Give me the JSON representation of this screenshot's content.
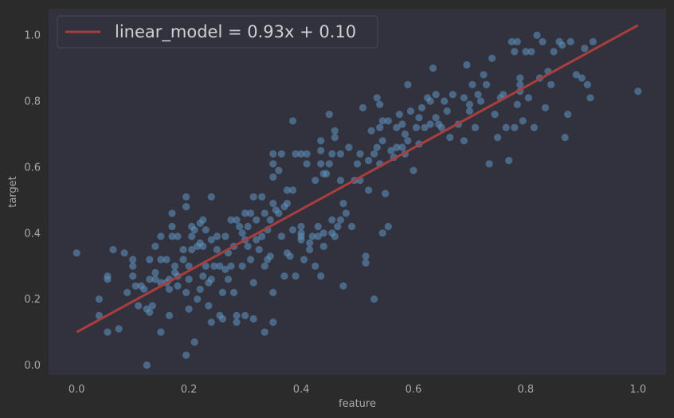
{
  "chart_data": {
    "type": "scatter",
    "title": "",
    "xlabel": "feature",
    "ylabel": "target",
    "xlim": [
      -0.05,
      1.05
    ],
    "ylim": [
      -0.03,
      1.08
    ],
    "xticks": [
      0.0,
      0.2,
      0.4,
      0.6,
      0.8,
      1.0
    ],
    "yticks": [
      0.0,
      0.2,
      0.4,
      0.6,
      0.8,
      1.0
    ],
    "xtick_labels": [
      "0.0",
      "0.2",
      "0.4",
      "0.6",
      "0.8",
      "1.0"
    ],
    "ytick_labels": [
      "0.0",
      "0.2",
      "0.4",
      "0.6",
      "0.8",
      "1.0"
    ],
    "grid": false,
    "legend_position": "top-left",
    "colors": {
      "background": "#2b2b2b",
      "plot_background": "#32323e",
      "points": "#5b8db8",
      "line": "#a83e3e",
      "text": "#a8a8a8",
      "legend_text": "#d0d0d0"
    },
    "line": {
      "name": "linear_model = 0.93x + 0.10",
      "slope": 0.93,
      "intercept": 0.1,
      "x": [
        0.0,
        1.0
      ]
    },
    "points": [
      [
        0.0,
        0.34
      ],
      [
        0.04,
        0.2
      ],
      [
        0.04,
        0.15
      ],
      [
        0.055,
        0.27
      ],
      [
        0.055,
        0.26
      ],
      [
        0.055,
        0.1
      ],
      [
        0.065,
        0.35
      ],
      [
        0.075,
        0.11
      ],
      [
        0.085,
        0.34
      ],
      [
        0.09,
        0.22
      ],
      [
        0.1,
        0.32
      ],
      [
        0.1,
        0.3
      ],
      [
        0.1,
        0.27
      ],
      [
        0.105,
        0.24
      ],
      [
        0.11,
        0.18
      ],
      [
        0.115,
        0.24
      ],
      [
        0.12,
        0.23
      ],
      [
        0.125,
        0.17
      ],
      [
        0.125,
        0.0
      ],
      [
        0.13,
        0.32
      ],
      [
        0.13,
        0.16
      ],
      [
        0.13,
        0.26
      ],
      [
        0.135,
        0.18
      ],
      [
        0.14,
        0.36
      ],
      [
        0.14,
        0.28
      ],
      [
        0.14,
        0.26
      ],
      [
        0.15,
        0.32
      ],
      [
        0.15,
        0.25
      ],
      [
        0.15,
        0.39
      ],
      [
        0.15,
        0.1
      ],
      [
        0.16,
        0.32
      ],
      [
        0.16,
        0.25
      ],
      [
        0.165,
        0.26
      ],
      [
        0.165,
        0.23
      ],
      [
        0.165,
        0.15
      ],
      [
        0.17,
        0.39
      ],
      [
        0.17,
        0.42
      ],
      [
        0.17,
        0.46
      ],
      [
        0.175,
        0.28
      ],
      [
        0.175,
        0.3
      ],
      [
        0.18,
        0.39
      ],
      [
        0.18,
        0.27
      ],
      [
        0.18,
        0.24
      ],
      [
        0.19,
        0.32
      ],
      [
        0.19,
        0.35
      ],
      [
        0.195,
        0.51
      ],
      [
        0.195,
        0.48
      ],
      [
        0.195,
        0.22
      ],
      [
        0.195,
        0.03
      ],
      [
        0.2,
        0.26
      ],
      [
        0.2,
        0.3
      ],
      [
        0.2,
        0.17
      ],
      [
        0.205,
        0.42
      ],
      [
        0.205,
        0.35
      ],
      [
        0.205,
        0.39
      ],
      [
        0.21,
        0.41
      ],
      [
        0.21,
        0.07
      ],
      [
        0.215,
        0.36
      ],
      [
        0.215,
        0.2
      ],
      [
        0.22,
        0.43
      ],
      [
        0.22,
        0.37
      ],
      [
        0.22,
        0.23
      ],
      [
        0.225,
        0.27
      ],
      [
        0.225,
        0.36
      ],
      [
        0.225,
        0.44
      ],
      [
        0.23,
        0.3
      ],
      [
        0.23,
        0.41
      ],
      [
        0.235,
        0.25
      ],
      [
        0.235,
        0.18
      ],
      [
        0.24,
        0.51
      ],
      [
        0.24,
        0.38
      ],
      [
        0.24,
        0.26
      ],
      [
        0.24,
        0.13
      ],
      [
        0.245,
        0.3
      ],
      [
        0.25,
        0.35
      ],
      [
        0.25,
        0.39
      ],
      [
        0.255,
        0.3
      ],
      [
        0.255,
        0.15
      ],
      [
        0.26,
        0.14
      ],
      [
        0.26,
        0.22
      ],
      [
        0.265,
        0.39
      ],
      [
        0.265,
        0.29
      ],
      [
        0.27,
        0.34
      ],
      [
        0.27,
        0.26
      ],
      [
        0.275,
        0.44
      ],
      [
        0.275,
        0.3
      ],
      [
        0.28,
        0.36
      ],
      [
        0.28,
        0.22
      ],
      [
        0.285,
        0.44
      ],
      [
        0.285,
        0.15
      ],
      [
        0.285,
        0.13
      ],
      [
        0.29,
        0.42
      ],
      [
        0.295,
        0.3
      ],
      [
        0.295,
        0.4
      ],
      [
        0.3,
        0.46
      ],
      [
        0.3,
        0.38
      ],
      [
        0.3,
        0.15
      ],
      [
        0.305,
        0.36
      ],
      [
        0.305,
        0.42
      ],
      [
        0.31,
        0.46
      ],
      [
        0.31,
        0.32
      ],
      [
        0.315,
        0.51
      ],
      [
        0.315,
        0.25
      ],
      [
        0.315,
        0.14
      ],
      [
        0.32,
        0.44
      ],
      [
        0.32,
        0.38
      ],
      [
        0.325,
        0.35
      ],
      [
        0.33,
        0.51
      ],
      [
        0.33,
        0.39
      ],
      [
        0.335,
        0.46
      ],
      [
        0.335,
        0.3
      ],
      [
        0.335,
        0.1
      ],
      [
        0.34,
        0.41
      ],
      [
        0.34,
        0.32
      ],
      [
        0.345,
        0.33
      ],
      [
        0.345,
        0.44
      ],
      [
        0.35,
        0.57
      ],
      [
        0.35,
        0.61
      ],
      [
        0.35,
        0.64
      ],
      [
        0.35,
        0.49
      ],
      [
        0.35,
        0.22
      ],
      [
        0.35,
        0.13
      ],
      [
        0.355,
        0.47
      ],
      [
        0.36,
        0.59
      ],
      [
        0.36,
        0.46
      ],
      [
        0.365,
        0.64
      ],
      [
        0.365,
        0.39
      ],
      [
        0.37,
        0.48
      ],
      [
        0.37,
        0.27
      ],
      [
        0.375,
        0.49
      ],
      [
        0.375,
        0.53
      ],
      [
        0.375,
        0.34
      ],
      [
        0.38,
        0.33
      ],
      [
        0.385,
        0.53
      ],
      [
        0.385,
        0.74
      ],
      [
        0.385,
        0.41
      ],
      [
        0.39,
        0.64
      ],
      [
        0.39,
        0.27
      ],
      [
        0.4,
        0.39
      ],
      [
        0.4,
        0.42
      ],
      [
        0.4,
        0.4
      ],
      [
        0.4,
        0.38
      ],
      [
        0.4,
        0.64
      ],
      [
        0.405,
        0.32
      ],
      [
        0.41,
        0.61
      ],
      [
        0.41,
        0.64
      ],
      [
        0.415,
        0.37
      ],
      [
        0.415,
        0.35
      ],
      [
        0.42,
        0.39
      ],
      [
        0.425,
        0.3
      ],
      [
        0.425,
        0.56
      ],
      [
        0.43,
        0.39
      ],
      [
        0.43,
        0.42
      ],
      [
        0.435,
        0.65
      ],
      [
        0.435,
        0.68
      ],
      [
        0.435,
        0.61
      ],
      [
        0.435,
        0.27
      ],
      [
        0.44,
        0.58
      ],
      [
        0.44,
        0.4
      ],
      [
        0.44,
        0.36
      ],
      [
        0.445,
        0.58
      ],
      [
        0.45,
        0.61
      ],
      [
        0.45,
        0.76
      ],
      [
        0.455,
        0.4
      ],
      [
        0.455,
        0.44
      ],
      [
        0.455,
        0.64
      ],
      [
        0.46,
        0.69
      ],
      [
        0.46,
        0.71
      ],
      [
        0.46,
        0.39
      ],
      [
        0.465,
        0.42
      ],
      [
        0.47,
        0.56
      ],
      [
        0.47,
        0.44
      ],
      [
        0.47,
        0.64
      ],
      [
        0.475,
        0.49
      ],
      [
        0.475,
        0.24
      ],
      [
        0.48,
        0.46
      ],
      [
        0.485,
        0.66
      ],
      [
        0.49,
        0.42
      ],
      [
        0.495,
        0.56
      ],
      [
        0.5,
        0.61
      ],
      [
        0.505,
        0.64
      ],
      [
        0.505,
        0.56
      ],
      [
        0.51,
        0.78
      ],
      [
        0.515,
        0.31
      ],
      [
        0.515,
        0.33
      ],
      [
        0.52,
        0.62
      ],
      [
        0.52,
        0.53
      ],
      [
        0.525,
        0.71
      ],
      [
        0.53,
        0.2
      ],
      [
        0.53,
        0.64
      ],
      [
        0.535,
        0.81
      ],
      [
        0.535,
        0.66
      ],
      [
        0.54,
        0.61
      ],
      [
        0.54,
        0.72
      ],
      [
        0.54,
        0.79
      ],
      [
        0.545,
        0.74
      ],
      [
        0.545,
        0.68
      ],
      [
        0.545,
        0.4
      ],
      [
        0.55,
        0.52
      ],
      [
        0.555,
        0.74
      ],
      [
        0.555,
        0.42
      ],
      [
        0.56,
        0.65
      ],
      [
        0.565,
        0.63
      ],
      [
        0.57,
        0.66
      ],
      [
        0.57,
        0.72
      ],
      [
        0.575,
        0.76
      ],
      [
        0.58,
        0.66
      ],
      [
        0.58,
        0.73
      ],
      [
        0.585,
        0.7
      ],
      [
        0.585,
        0.64
      ],
      [
        0.59,
        0.68
      ],
      [
        0.59,
        0.85
      ],
      [
        0.595,
        0.77
      ],
      [
        0.6,
        0.59
      ],
      [
        0.605,
        0.72
      ],
      [
        0.61,
        0.75
      ],
      [
        0.61,
        0.67
      ],
      [
        0.615,
        0.78
      ],
      [
        0.62,
        0.72
      ],
      [
        0.625,
        0.81
      ],
      [
        0.63,
        0.8
      ],
      [
        0.63,
        0.73
      ],
      [
        0.635,
        0.9
      ],
      [
        0.64,
        0.82
      ],
      [
        0.64,
        0.75
      ],
      [
        0.645,
        0.73
      ],
      [
        0.65,
        0.72
      ],
      [
        0.655,
        0.8
      ],
      [
        0.66,
        0.77
      ],
      [
        0.665,
        0.69
      ],
      [
        0.67,
        0.82
      ],
      [
        0.68,
        0.73
      ],
      [
        0.69,
        0.81
      ],
      [
        0.69,
        0.68
      ],
      [
        0.695,
        0.91
      ],
      [
        0.7,
        0.79
      ],
      [
        0.7,
        0.77
      ],
      [
        0.705,
        0.85
      ],
      [
        0.71,
        0.72
      ],
      [
        0.715,
        0.82
      ],
      [
        0.72,
        0.8
      ],
      [
        0.725,
        0.88
      ],
      [
        0.73,
        0.85
      ],
      [
        0.735,
        0.61
      ],
      [
        0.74,
        0.93
      ],
      [
        0.745,
        0.76
      ],
      [
        0.75,
        0.69
      ],
      [
        0.755,
        0.81
      ],
      [
        0.76,
        0.82
      ],
      [
        0.765,
        0.72
      ],
      [
        0.77,
        0.62
      ],
      [
        0.775,
        0.98
      ],
      [
        0.78,
        0.95
      ],
      [
        0.78,
        0.72
      ],
      [
        0.785,
        0.79
      ],
      [
        0.785,
        0.98
      ],
      [
        0.79,
        0.87
      ],
      [
        0.79,
        0.85
      ],
      [
        0.79,
        0.83
      ],
      [
        0.795,
        0.74
      ],
      [
        0.8,
        0.95
      ],
      [
        0.805,
        0.81
      ],
      [
        0.81,
        0.95
      ],
      [
        0.815,
        0.72
      ],
      [
        0.82,
        1.0
      ],
      [
        0.825,
        0.87
      ],
      [
        0.83,
        0.98
      ],
      [
        0.835,
        0.78
      ],
      [
        0.84,
        0.89
      ],
      [
        0.845,
        0.85
      ],
      [
        0.85,
        0.95
      ],
      [
        0.86,
        0.98
      ],
      [
        0.865,
        0.97
      ],
      [
        0.87,
        0.69
      ],
      [
        0.875,
        0.76
      ],
      [
        0.88,
        0.98
      ],
      [
        0.89,
        0.88
      ],
      [
        0.9,
        0.87
      ],
      [
        0.905,
        0.96
      ],
      [
        0.91,
        0.85
      ],
      [
        0.915,
        0.81
      ],
      [
        0.92,
        0.98
      ],
      [
        1.0,
        0.83
      ]
    ]
  }
}
